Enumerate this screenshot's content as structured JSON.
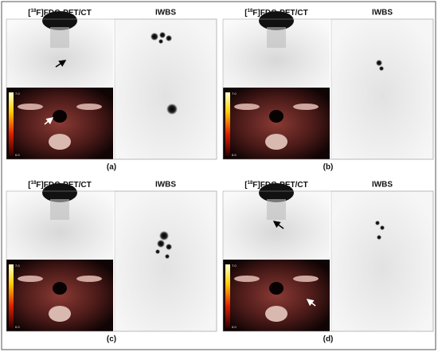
{
  "panels": [
    {
      "pet_title": [
        "[",
        "18",
        "F]FDG-PET/CT"
      ],
      "iwbs_title": "IWBS",
      "caption": "(a)",
      "colorbar": [
        "7.0",
        "0.0"
      ]
    },
    {
      "pet_title": [
        "[",
        "18",
        "F]FDG-PET/CT"
      ],
      "iwbs_title": "IWBS",
      "caption": "(b)",
      "colorbar": [
        "7.0",
        "0.0"
      ]
    },
    {
      "pet_title": [
        "[",
        "18",
        "F]FDG-PET/CT"
      ],
      "iwbs_title": "IWBS",
      "caption": "(c)",
      "colorbar": [
        "7.0",
        "0.0"
      ]
    },
    {
      "pet_title": [
        "[",
        "18",
        "F]FDG-PET/CT"
      ],
      "iwbs_title": "IWBS",
      "caption": "(d)",
      "colorbar": [
        "7.0",
        "0.0"
      ]
    }
  ]
}
